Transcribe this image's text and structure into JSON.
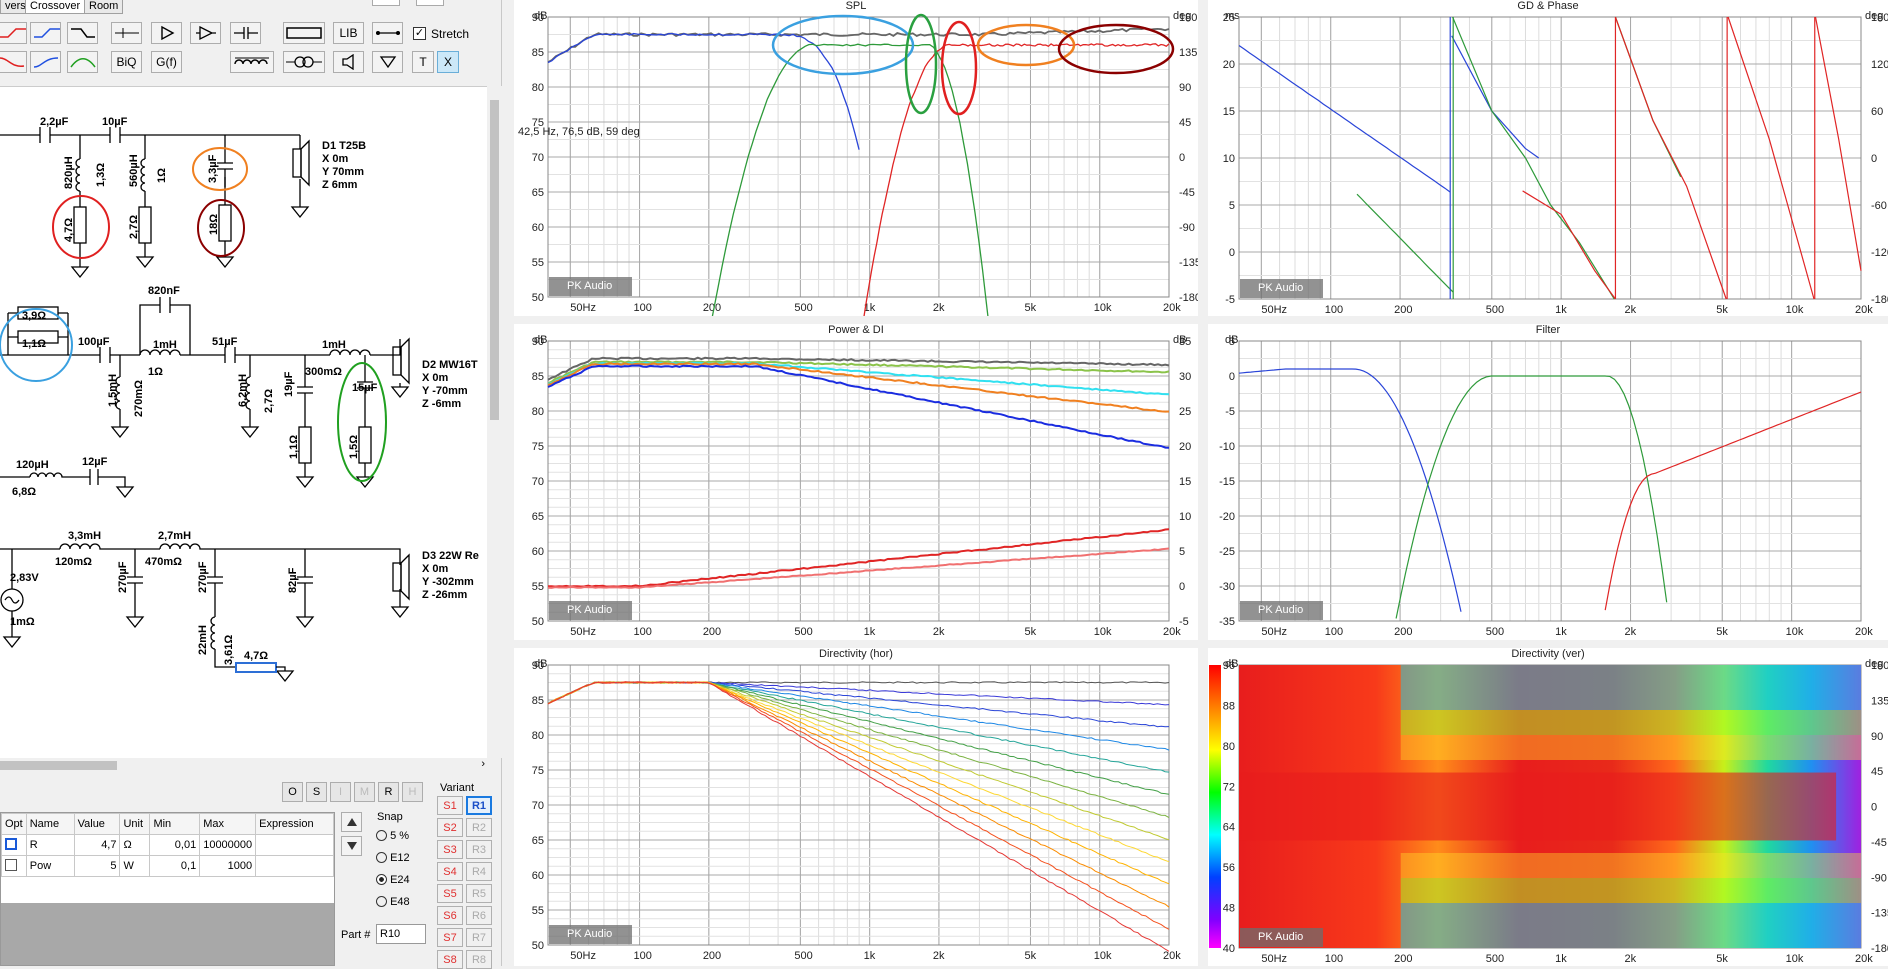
{
  "tabs": [
    "vers",
    "Crossover",
    "Room"
  ],
  "toolbar": {
    "bq": "BiQ",
    "gf": "G(f)",
    "lib": "LIB",
    "stretch": "Stretch",
    "t": "T",
    "x": "X"
  },
  "schematic": {
    "labels": [
      "2,2µF",
      "10µF",
      "820µH",
      "1,3Ω",
      "560µH",
      "1Ω",
      "4,7Ω",
      "2,7Ω",
      "3,3µF",
      "18Ω",
      "D1 T25B",
      "X 0m",
      "Y 70mm",
      "Z 6mm",
      "820nF",
      "3,9Ω",
      "1,1Ω",
      "100µF",
      "1mH",
      "1Ω",
      "51µF",
      "1mH",
      "300mΩ",
      "1,5mH",
      "270mΩ",
      "6,2mH",
      "2,7Ω",
      "19µF",
      "1,1Ω",
      "15µF",
      "1,5Ω",
      "D2 MW16T",
      "X 0m",
      "Y -70mm",
      "Z -6mm",
      "120µH",
      "6,8Ω",
      "12µF",
      "3,3mH",
      "120mΩ",
      "2,7mH",
      "470mΩ",
      "270µF",
      "270µF",
      "82µF",
      "D3 22W Re",
      "X 0m",
      "Y -302mm",
      "Z -26mm",
      "2,83V",
      "1mΩ",
      "22mH",
      "3,61Ω",
      "4,7Ω"
    ]
  },
  "bottom_buttons": [
    "O",
    "S",
    "I",
    "M",
    "R",
    "H"
  ],
  "grid": {
    "headers": [
      "Opt",
      "Name",
      "Value",
      "Unit",
      "Min",
      "Max",
      "Expression"
    ],
    "rows": [
      [
        "",
        "R",
        "4,7",
        "Ω",
        "0,01",
        "10000000",
        ""
      ],
      [
        "",
        "Pow",
        "5",
        "W",
        "0,1",
        "1000",
        ""
      ]
    ]
  },
  "snap": {
    "title": "Snap",
    "options": [
      "5 %",
      "E12",
      "E24",
      "E48"
    ],
    "selected": "E24"
  },
  "part": {
    "label": "Part #",
    "value": "R10"
  },
  "variant": {
    "title": "Variant",
    "s": [
      "S1",
      "S2",
      "S3",
      "S4",
      "S5",
      "S6",
      "S7",
      "S8"
    ],
    "r": [
      "R1",
      "R2",
      "R3",
      "R4",
      "R5",
      "R6",
      "R7",
      "R8"
    ],
    "selected": "R1"
  },
  "panels": {
    "spl": {
      "title": "SPL",
      "unit_left": "dB",
      "unit_right": "deg",
      "yl": [
        "90",
        "85",
        "80",
        "75",
        "70",
        "65",
        "60",
        "55",
        "50"
      ],
      "yr": [
        "180",
        "135",
        "90",
        "45",
        "0",
        "-45",
        "-90",
        "-135",
        "-180"
      ],
      "readout": "42,5 Hz, 76,5 dB, 59 deg"
    },
    "gd": {
      "title": "GD & Phase",
      "unit_left": "ms",
      "unit_right": "deg",
      "yl": [
        "25",
        "20",
        "15",
        "10",
        "5",
        "0",
        "-5"
      ],
      "yr": [
        "180",
        "120",
        "60",
        "0",
        "-60",
        "-120",
        "-180"
      ]
    },
    "power": {
      "title": "Power & DI",
      "unit_left": "dB",
      "unit_right": "dB",
      "yl": [
        "90",
        "85",
        "80",
        "75",
        "70",
        "65",
        "60",
        "55",
        "50"
      ],
      "yr": [
        "35",
        "30",
        "25",
        "20",
        "15",
        "10",
        "5",
        "0",
        "-5"
      ]
    },
    "filter": {
      "title": "Filter",
      "unit_left": "dB",
      "yl": [
        "5",
        "0",
        "-5",
        "-10",
        "-15",
        "-20",
        "-25",
        "-30",
        "-35"
      ]
    },
    "dirh": {
      "title": "Directivity (hor)",
      "unit_left": "dB",
      "yl": [
        "90",
        "85",
        "80",
        "75",
        "70",
        "65",
        "60",
        "55",
        "50"
      ]
    },
    "dirv": {
      "title": "Directivity (ver)",
      "unit_left": "dB",
      "unit_right": "deg",
      "yl": [
        "96",
        "88",
        "80",
        "72",
        "64",
        "56",
        "48",
        "40"
      ],
      "yr": [
        "180",
        "135",
        "90",
        "45",
        "0",
        "-45",
        "-90",
        "-135",
        "-180"
      ]
    }
  },
  "xticks": [
    "50Hz",
    "100",
    "200",
    "500",
    "1k",
    "2k",
    "5k",
    "10k",
    "20k"
  ],
  "watermark": "PK Audio"
}
